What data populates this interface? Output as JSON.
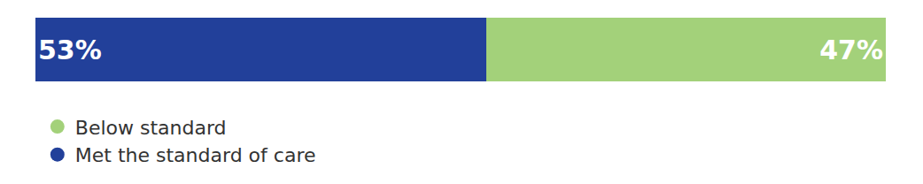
{
  "chart_data": {
    "type": "bar",
    "orientation": "horizontal",
    "stacked": true,
    "categories": [
      null
    ],
    "series": [
      {
        "name": "Met the standard of care",
        "color": "#22409a",
        "values": [
          53
        ],
        "value_labels": [
          "53%"
        ]
      },
      {
        "name": "Below standard",
        "color": "#a3d17a",
        "values": [
          47
        ],
        "value_labels": [
          "47%"
        ]
      }
    ],
    "xlim": [
      0,
      100
    ],
    "data_labels": true,
    "tick_labels": false,
    "legend": "bottom",
    "marker": "circle"
  }
}
